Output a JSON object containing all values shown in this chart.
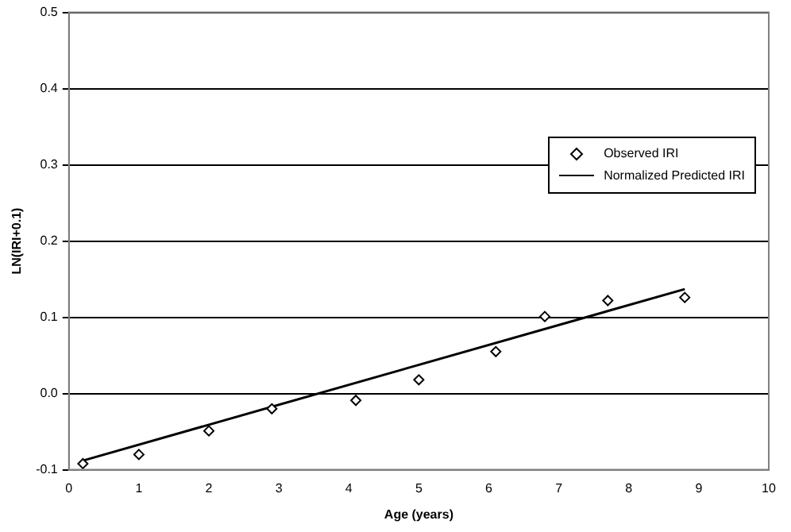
{
  "chart_data": {
    "type": "scatter",
    "xlabel": "Age (years)",
    "ylabel": "LN(IRI+0.1)",
    "series": [
      {
        "name": "Observed IRI",
        "color": "#000000",
        "marker": "diamond",
        "x": [
          0.2,
          1,
          2,
          2.9,
          4.1,
          5,
          6.1,
          6.8,
          7.7,
          8.8
        ],
        "values": [
          -0.092,
          -0.08,
          -0.049,
          -0.02,
          -0.009,
          0.018,
          0.055,
          0.101,
          0.122,
          0.126
        ]
      },
      {
        "name": "Normalized Predicted IRI",
        "type": "line",
        "color": "#000000",
        "marker": "none",
        "line_style": "solid",
        "x": [
          0.2,
          8.8
        ],
        "values": [
          -0.088,
          0.137
        ]
      }
    ],
    "xlim": [
      0,
      10
    ],
    "xticks": [
      0,
      1,
      2,
      3,
      4,
      5,
      6,
      7,
      8,
      9,
      10
    ],
    "ylim": [
      -0.1,
      0.5
    ],
    "yticks": [
      -0.1,
      {
        "value": 0,
        "label": "0.0"
      },
      0.1,
      0.2,
      0.3,
      0.4,
      0.5
    ],
    "grid": "y",
    "legend": "right"
  }
}
